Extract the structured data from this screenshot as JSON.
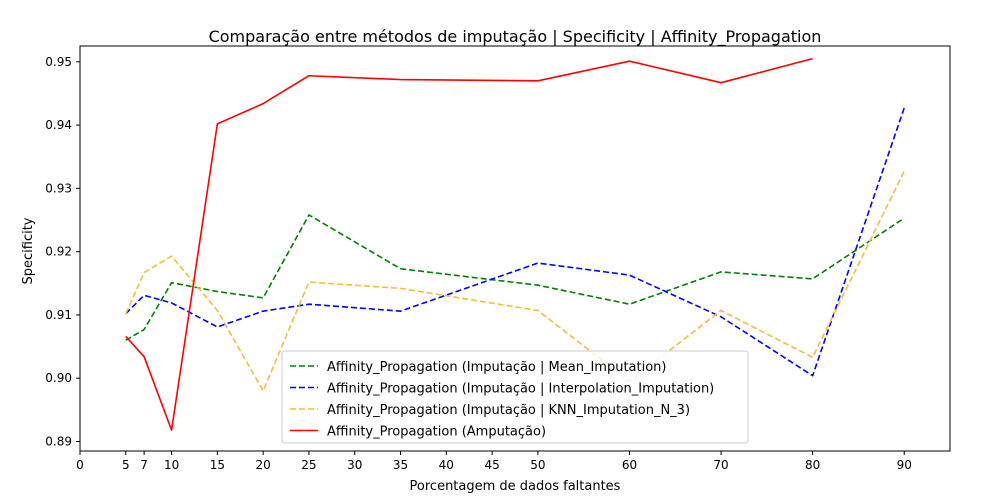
{
  "chart_data": {
    "type": "line",
    "title": "Comparação entre métodos de imputação | Specificity | Affinity_Propagation",
    "xlabel": "Porcentagem de dados faltantes",
    "ylabel": "Specificity",
    "xlim": [
      0,
      95
    ],
    "ylim": [
      0.8885,
      0.9525
    ],
    "x_ticks": [
      0,
      5,
      7,
      10,
      15,
      20,
      25,
      30,
      35,
      40,
      45,
      50,
      60,
      70,
      80,
      90
    ],
    "y_ticks": [
      0.89,
      0.9,
      0.91,
      0.92,
      0.93,
      0.94,
      0.95
    ],
    "x": [
      5,
      7,
      10,
      15,
      20,
      25,
      35,
      50,
      60,
      70,
      80,
      90
    ],
    "grid": false,
    "legend_position": "lower-center",
    "series": [
      {
        "name": "Affinity_Propagation (Imputação | Mean_Imputation)",
        "color": "#008000",
        "style": "dashed",
        "values": [
          0.906,
          0.9077,
          0.9151,
          0.9137,
          0.9127,
          0.9258,
          0.9173,
          0.9147,
          0.9117,
          0.9168,
          0.9157,
          0.9253
        ]
      },
      {
        "name": "Affinity_Propagation (Imputação | Interpolation_Imputation)",
        "color": "#0000ff",
        "style": "dashed",
        "values": [
          0.9102,
          0.9131,
          0.9119,
          0.9081,
          0.9106,
          0.9117,
          0.9106,
          0.9182,
          0.9163,
          0.9097,
          0.9004,
          0.9427
        ]
      },
      {
        "name": "Affinity_Propagation (Imputação | KNN_Imputation_N_3)",
        "color": "#f0be3c",
        "style": "dashed",
        "values": [
          0.9102,
          0.9167,
          0.9193,
          0.9107,
          0.898,
          0.9152,
          0.9142,
          0.9107,
          0.8995,
          0.9107,
          0.9033,
          0.9327
        ]
      },
      {
        "name": "Affinity_Propagation (Amputação)",
        "color": "#ff0000",
        "style": "solid",
        "values": [
          0.9066,
          0.9034,
          0.8918,
          0.9402,
          0.9434,
          0.9478,
          0.9472,
          0.947,
          0.9501,
          0.9467,
          0.9505,
          null
        ]
      }
    ]
  }
}
